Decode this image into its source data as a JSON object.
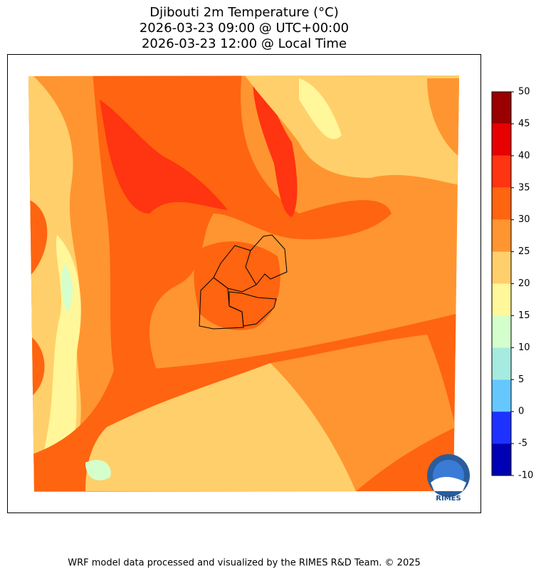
{
  "header": {
    "title_lines": [
      "Djibouti 2m Temperature (°C)",
      "2026-03-23 09:00 @ UTC+00:00",
      "2026-03-23 12:00 @ Local Time"
    ]
  },
  "colorbar": {
    "levels": [
      -10,
      -5,
      0,
      5,
      10,
      15,
      20,
      25,
      30,
      35,
      40,
      45,
      50
    ],
    "colors": [
      "#0000b4",
      "#1e32ff",
      "#64c8ff",
      "#a6ebdf",
      "#d4ffcc",
      "#fff799",
      "#ffcf6b",
      "#ff9530",
      "#ff6410",
      "#ff3410",
      "#e60000",
      "#9a0000"
    ],
    "ylim": [
      -10,
      50
    ]
  },
  "logo": {
    "text": "RIMES"
  },
  "footer": "WRF model data processed and visualized by the RIMES R&D Team. © 2025"
}
